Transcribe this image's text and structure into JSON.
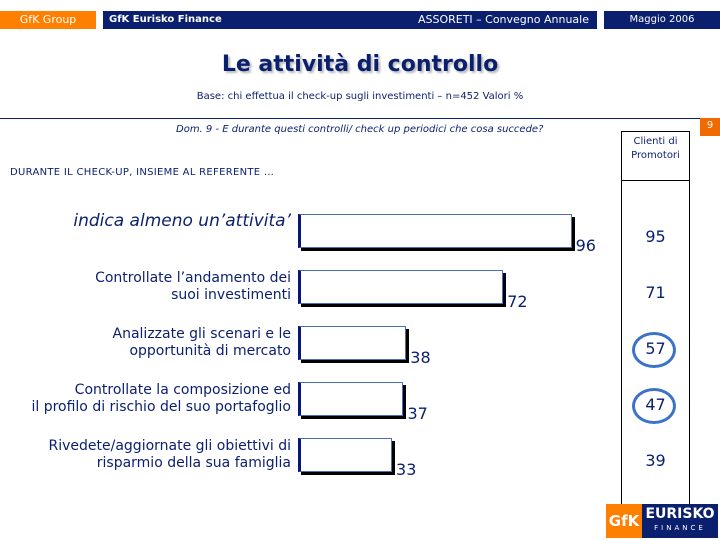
{
  "header": {
    "gfk_group": "GfK Group",
    "eurisko_finance": "GfK Eurisko Finance",
    "convegno": "ASSORETI – Convegno Annuale",
    "date": "Maggio  2006"
  },
  "page_number": "9",
  "colors": {
    "brand_orange": "#ff7f00",
    "brand_navy": "#0a1f6e",
    "highlight_circle": "#3b73c8"
  },
  "chart_data": {
    "type": "bar",
    "orientation": "horizontal",
    "title": "Le attività di controllo",
    "subtitle": "Base: chi effettua il check-up sugli investimenti – n=452  Valori %",
    "question": "Dom. 9 - E durante questi controlli/ check up periodici che cosa succede?",
    "section_label": "DURANTE IL CHECK-UP, INSIEME AL REFERENTE …",
    "categories": [
      "indica almeno un’attivita’",
      "Controllate l’andamento dei suoi investimenti",
      "Analizzate gli scenari e le opportunità di mercato",
      "Controllate la composizione ed il profilo di rischio del suo portafoglio",
      "Rivedete/aggiornate gli obiettivi di risparmio della sua famiglia"
    ],
    "category_lines": [
      [
        "indica almeno un’attivita’"
      ],
      [
        "Controllate l’andamento dei",
        "suoi investimenti"
      ],
      [
        "Analizzate gli scenari e le",
        "opportunità di mercato"
      ],
      [
        "Controllate la composizione ed",
        "il profilo di rischio del suo portafoglio"
      ],
      [
        "Rivedete/aggiornate gli obiettivi di",
        "risparmio della sua famiglia"
      ]
    ],
    "values": [
      96,
      72,
      38,
      37,
      33
    ],
    "value_labels": [
      "96",
      "72",
      "38",
      "37",
      "33"
    ],
    "xlim": [
      0,
      100
    ],
    "comparison": {
      "header": "Clienti di Promotori",
      "values": [
        95,
        71,
        57,
        47,
        39
      ],
      "value_labels": [
        "95",
        "71",
        "57",
        "47",
        "39"
      ],
      "highlighted": [
        false,
        false,
        true,
        true,
        false
      ]
    }
  },
  "logo": {
    "gfk": "GfK",
    "eurisko": "EURISKO",
    "finance": "FINANCE"
  }
}
